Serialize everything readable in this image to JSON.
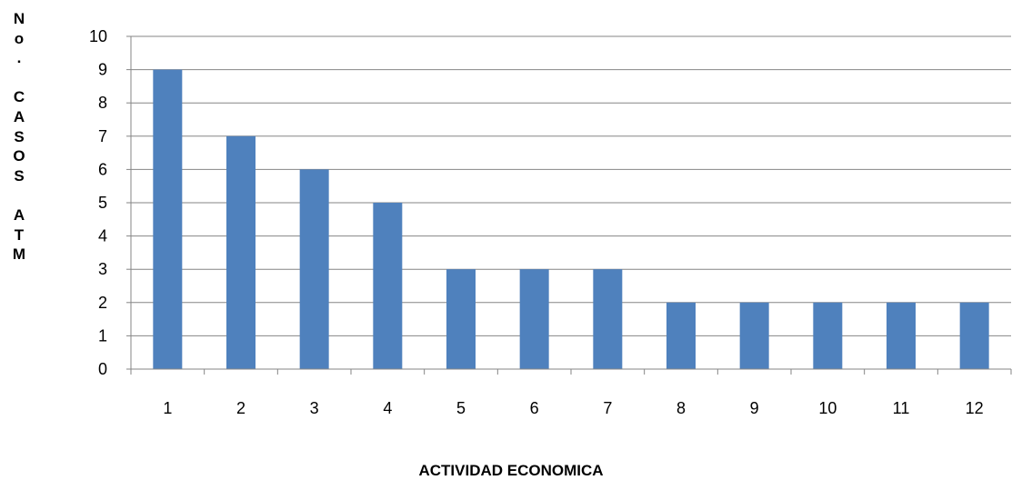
{
  "chart_data": {
    "type": "bar",
    "title": "",
    "xlabel": "ACTIVIDAD ECONOMICA",
    "ylabel": "No. CASOS ATM",
    "categories": [
      "1",
      "2",
      "3",
      "4",
      "5",
      "6",
      "7",
      "8",
      "9",
      "10",
      "11",
      "12"
    ],
    "values": [
      9,
      7,
      6,
      5,
      3,
      3,
      3,
      2,
      2,
      2,
      2,
      2
    ],
    "ylim": [
      0,
      10
    ],
    "yticks": [
      0,
      1,
      2,
      3,
      4,
      5,
      6,
      7,
      8,
      9,
      10
    ],
    "grid": true,
    "legend": "none",
    "bar_color": "#4F81BD",
    "grid_color": "#868686"
  }
}
